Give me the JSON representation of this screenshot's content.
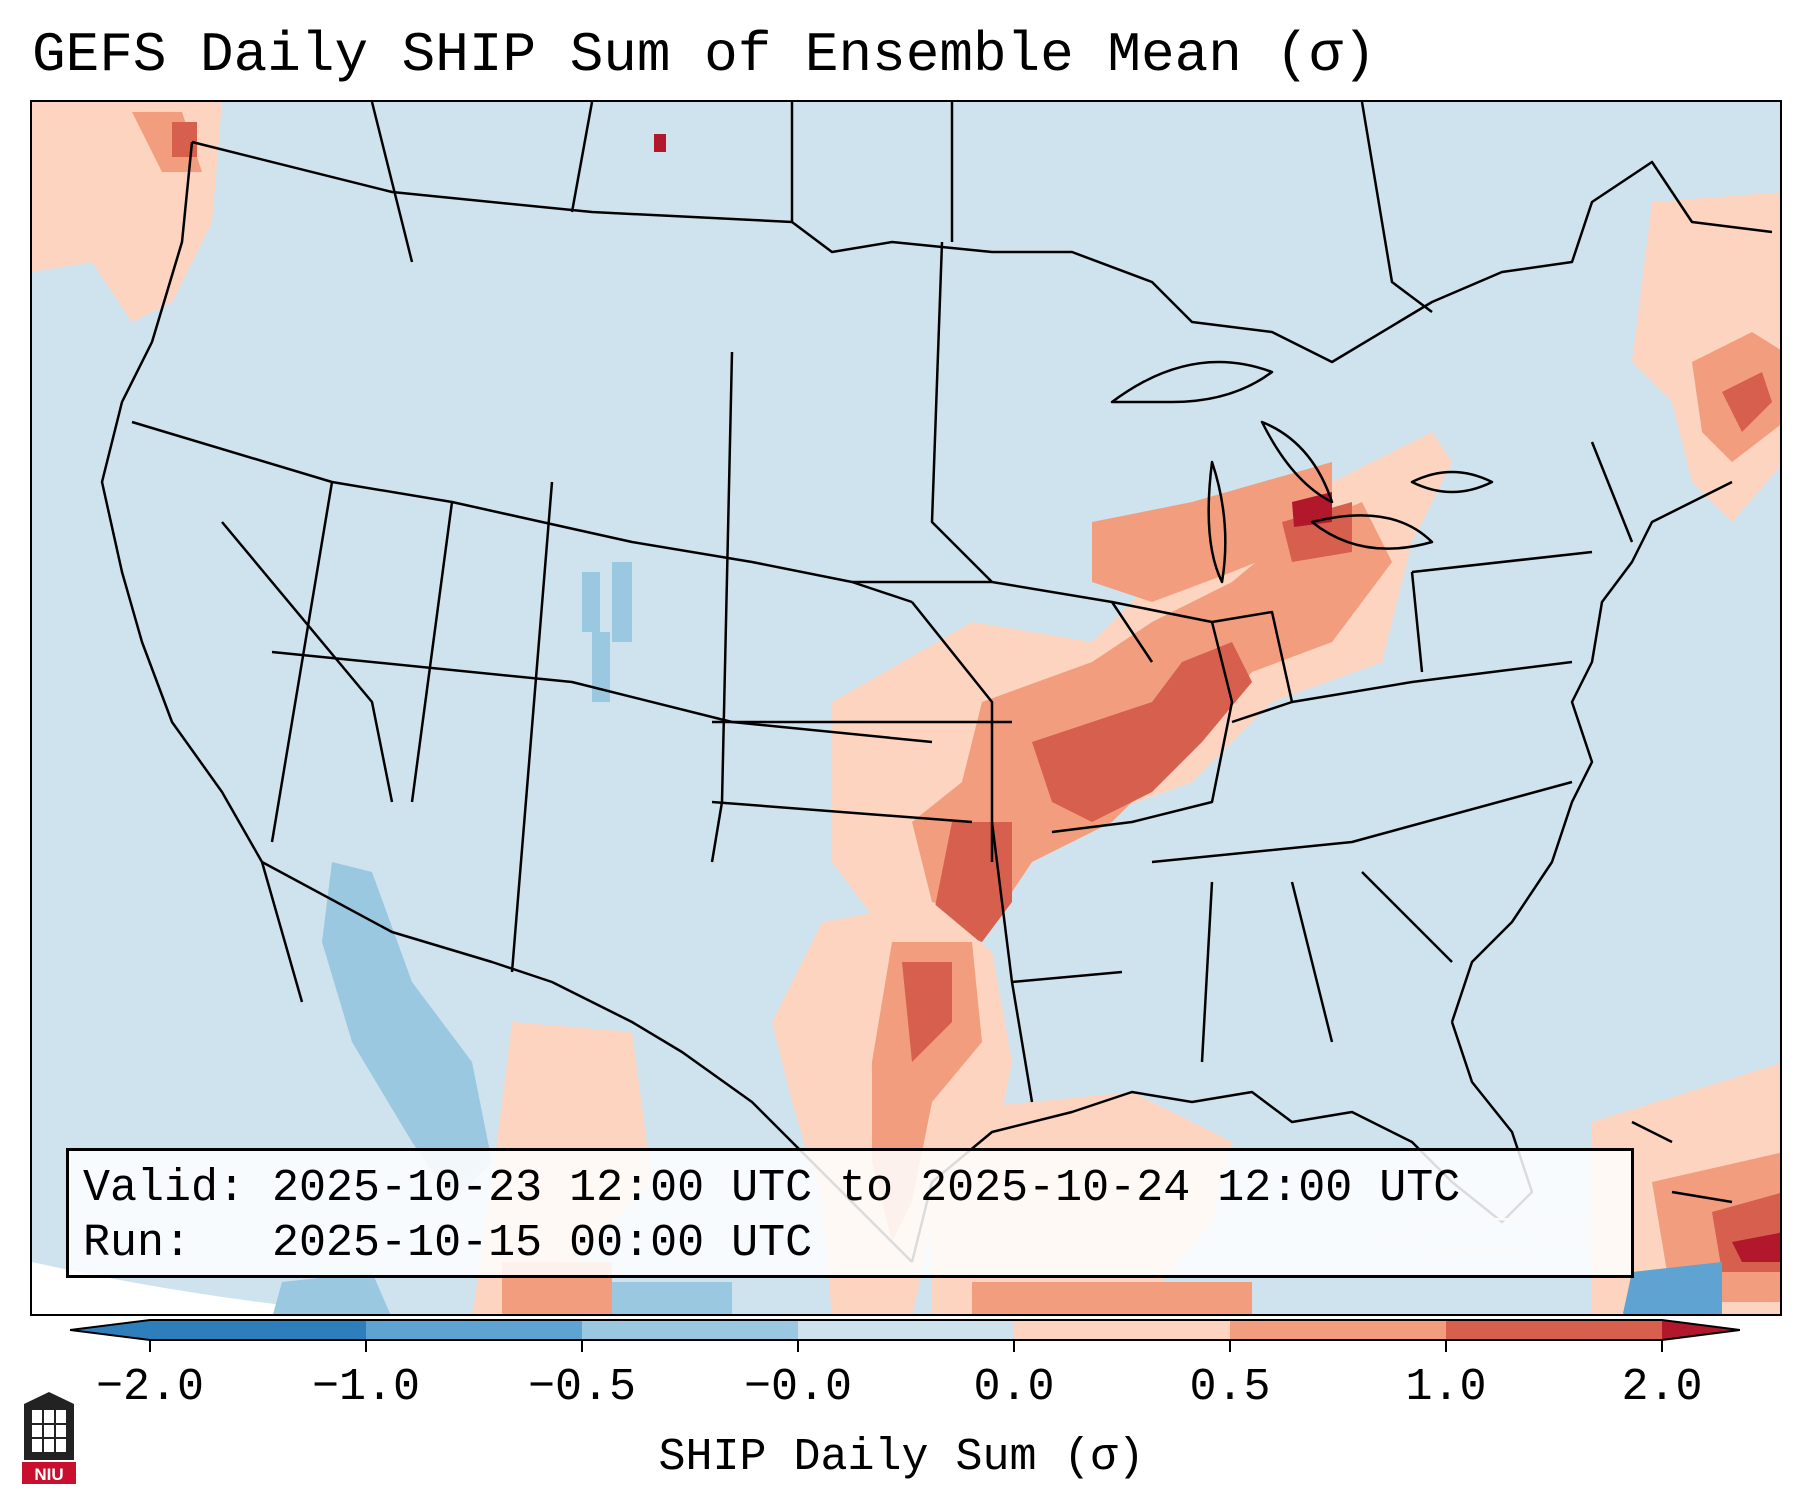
{
  "title": "GEFS Daily SHIP Sum of Ensemble Mean (σ)",
  "info": {
    "valid_label": "Valid:",
    "valid_value": "2025-10-23 12:00 UTC to 2025-10-24 12:00 UTC",
    "run_label": "Run:",
    "run_value": "2025-10-15 00:00 UTC"
  },
  "colorbar": {
    "label": "SHIP Daily Sum (σ)",
    "ticks": [
      "−2.0",
      "−1.0",
      "−0.5",
      "−0.0",
      "0.0",
      "0.5",
      "1.0",
      "2.0"
    ],
    "bin_colors": [
      "#2e7ebc",
      "#5ea3d1",
      "#9ac8e0",
      "#cfe3ef",
      "#ffffff",
      "#fcd4bf",
      "#f29d7e",
      "#d6604d",
      "#b2182b"
    ]
  },
  "map": {
    "background_color": "#cfe3ef",
    "state_line_color": "#000000"
  },
  "logo": {
    "icon": "niu-logo-icon",
    "text": "NIU"
  }
}
